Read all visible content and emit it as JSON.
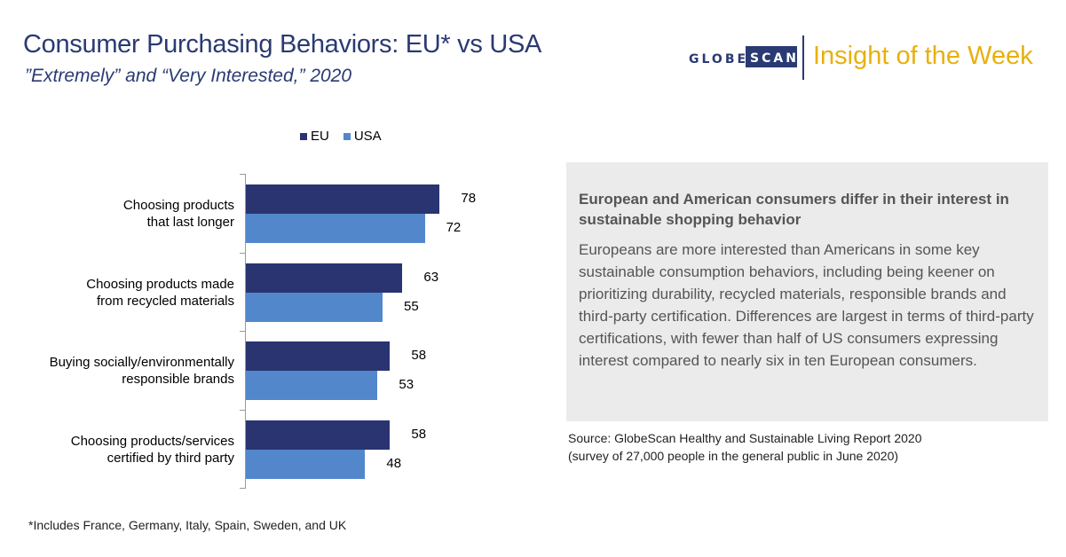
{
  "header": {
    "title": "Consumer Purchasing Behaviors: EU* vs USA",
    "subtitle": "”Extremely” and “Very Interested,” 2020"
  },
  "logo": {
    "wordmark_left": "GLOBE",
    "wordmark_right": "SCAN",
    "tagline": "Insight of the Week"
  },
  "colors": {
    "eu": "#2a3470",
    "usa": "#5387cc",
    "title": "#2a3a73",
    "tagline": "#e8b00c"
  },
  "chart_data": {
    "type": "bar",
    "orientation": "horizontal",
    "categories": [
      [
        "Choosing products",
        "that last longer"
      ],
      [
        "Choosing products made",
        "from recycled materials"
      ],
      [
        "Buying socially/environmentally",
        "responsible brands"
      ],
      [
        "Choosing products/services",
        "certified by third party"
      ]
    ],
    "series": [
      {
        "name": "EU",
        "values": [
          78,
          63,
          58,
          58
        ]
      },
      {
        "name": "USA",
        "values": [
          72,
          55,
          53,
          48
        ]
      }
    ],
    "xlim": [
      0,
      100
    ],
    "legend_position": "top",
    "grid": false
  },
  "panel": {
    "heading": "European and American consumers differ in their interest in sustainable shopping behavior",
    "body": "Europeans are more interested than Americans in some key sustainable consumption behaviors, including being keener on prioritizing durability, recycled materials, responsible brands and third-party certification. Differences are largest in terms of third-party certifications, with fewer than half of US consumers expressing interest compared to nearly six in ten European consumers."
  },
  "source": {
    "line1": "Source: GlobeScan Healthy and Sustainable Living Report 2020",
    "line2": "(survey of 27,000 people in the general public in June 2020)"
  },
  "footnote": "*Includes France, Germany, Italy, Spain, Sweden, and UK"
}
